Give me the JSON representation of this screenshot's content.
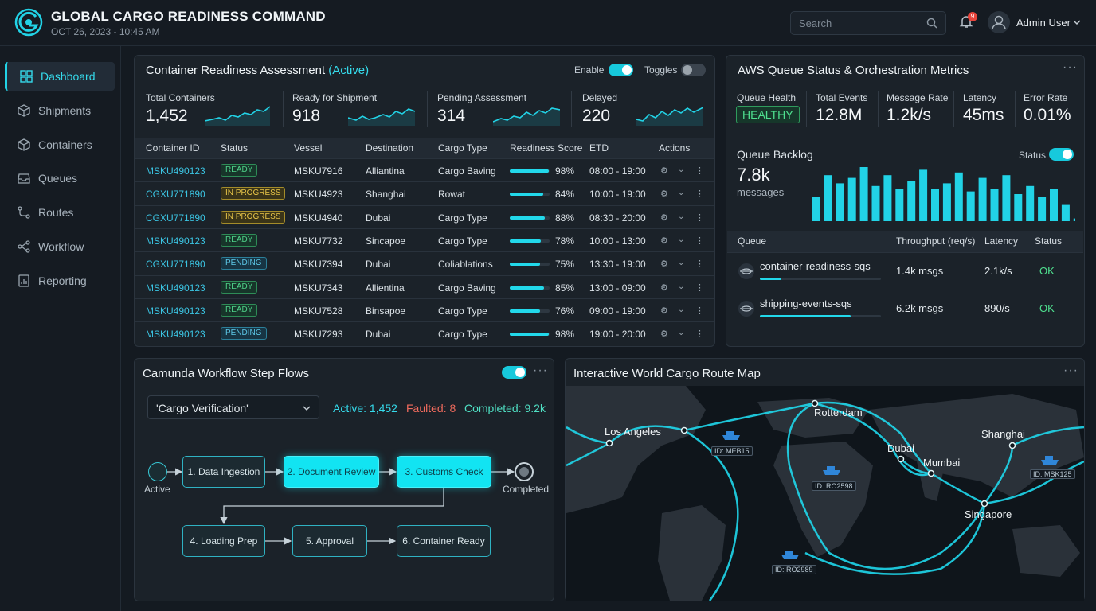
{
  "header": {
    "title": "GLOBAL CARGO READINESS COMMAND",
    "datetime": "OCT 26, 2023 - 10:45 AM",
    "search_placeholder": "Search",
    "notification_count": "9",
    "user_name": "Admin User"
  },
  "sidebar": {
    "items": [
      {
        "label": "Dashboard",
        "icon": "dashboard-icon",
        "active": true
      },
      {
        "label": "Shipments",
        "icon": "box-icon"
      },
      {
        "label": "Containers",
        "icon": "container-icon"
      },
      {
        "label": "Queues",
        "icon": "inbox-icon"
      },
      {
        "label": "Routes",
        "icon": "route-icon"
      },
      {
        "label": "Workflow",
        "icon": "workflow-icon"
      },
      {
        "label": "Reporting",
        "icon": "report-icon"
      }
    ]
  },
  "readiness": {
    "title": "Container Readiness Assessment",
    "title_suffix": "(Active)",
    "enable_label": "Enable",
    "toggles_label": "Toggles",
    "stats": [
      {
        "label": "Total Containers",
        "value": "1,452"
      },
      {
        "label": "Ready for Shipment",
        "value": "918"
      },
      {
        "label": "Pending Assessment",
        "value": "314"
      },
      {
        "label": "Delayed",
        "value": "220"
      }
    ],
    "columns": [
      "Container ID",
      "Status",
      "Vessel",
      "Destination",
      "Cargo Type",
      "Readiness Score",
      "ETD",
      "Actions"
    ],
    "rows": [
      {
        "id": "MSKU490123",
        "status": "READY",
        "vessel": "MSKU7916",
        "dest": "Alliantina",
        "cargo": "Cargo Baving",
        "score": 98,
        "score_label": "98%",
        "etd": "08:00 - 19:00"
      },
      {
        "id": "CGXU771890",
        "status": "IN PROGRESS",
        "vessel": "MSKU4923",
        "dest": "Shanghai",
        "cargo": "Rowat",
        "score": 84,
        "score_label": "84%",
        "etd": "10:00 - 19:00"
      },
      {
        "id": "CGXU771890",
        "status": "IN PROGRESS",
        "vessel": "MSKU4940",
        "dest": "Dubai",
        "cargo": "Cargo Type",
        "score": 88,
        "score_label": "88%",
        "etd": "08:30 - 20:00"
      },
      {
        "id": "MSKU490123",
        "status": "READY",
        "vessel": "MSKU7732",
        "dest": "Sincapoe",
        "cargo": "Cargo Type",
        "score": 78,
        "score_label": "78%",
        "etd": "10:00 - 13:00"
      },
      {
        "id": "CGXU771890",
        "status": "PENDING",
        "vessel": "MSKU7394",
        "dest": "Dubai",
        "cargo": "Coliablations",
        "score": 75,
        "score_label": "75%",
        "etd": "13:30 - 19:00"
      },
      {
        "id": "MSKU490123",
        "status": "READY",
        "vessel": "MSKU7343",
        "dest": "Allientina",
        "cargo": "Cargo Baving",
        "score": 85,
        "score_label": "85%",
        "etd": "13:00 - 09:00"
      },
      {
        "id": "MSKU490123",
        "status": "READY",
        "vessel": "MSKU7528",
        "dest": "Binsapoe",
        "cargo": "Cargo Type",
        "score": 76,
        "score_label": "76%",
        "etd": "09:00 - 19:00"
      },
      {
        "id": "MSKU490123",
        "status": "PENDING",
        "vessel": "MSKU7293",
        "dest": "Dubai",
        "cargo": "Cargo Type",
        "score": 98,
        "score_label": "98%",
        "etd": "19:00 - 20:00"
      }
    ]
  },
  "aws": {
    "title": "AWS Queue Status & Orchestration Metrics",
    "metrics": [
      {
        "label": "Queue Health",
        "value": "HEALTHY"
      },
      {
        "label": "Total Events",
        "value": "12.8M"
      },
      {
        "label": "Message Rate",
        "value": "1.2k/s"
      },
      {
        "label": "Latency",
        "value": "45ms"
      },
      {
        "label": "Error Rate",
        "value": "0.01%"
      }
    ],
    "backlog_label": "Queue Backlog",
    "backlog_value": "7.8k",
    "backlog_unit": "messages",
    "status_label": "Status",
    "backlog_bars": [
      0.45,
      0.85,
      0.7,
      0.8,
      1.0,
      0.65,
      0.85,
      0.6,
      0.75,
      0.95,
      0.6,
      0.7,
      0.9,
      0.55,
      0.8,
      0.6,
      0.85,
      0.5,
      0.65,
      0.45,
      0.6,
      0.3,
      0.05
    ],
    "columns": [
      "Queue",
      "Throughput (req/s)",
      "Latency",
      "Status"
    ],
    "queues": [
      {
        "name": "container-readiness-sqs",
        "throughput": "1.4k msgs",
        "latency": "2.1k/s",
        "status": "OK",
        "fill": 0.18
      },
      {
        "name": "shipping-events-sqs",
        "throughput": "6.2k msgs",
        "latency": "890/s",
        "status": "OK",
        "fill": 0.75
      }
    ]
  },
  "workflow": {
    "title": "Camunda Workflow Step Flows",
    "selected": "'Cargo Verification'",
    "active": "Active: 1,452",
    "faulted": "Faulted: 8",
    "completed": "Completed: 9.2k",
    "start_label": "Active",
    "end_label": "Completed",
    "steps": [
      "1. Data Ingestion",
      "2. Document Review",
      "3. Customs Check",
      "4. Loading Prep",
      "5. Approval",
      "6. Container Ready"
    ]
  },
  "map": {
    "title": "Interactive World Cargo Route Map",
    "cities": [
      "Los Angeles",
      "Rotterdam",
      "Dubai",
      "Mumbai",
      "Shanghai",
      "Singapore"
    ],
    "ships": [
      "ID: MEB15",
      "ID: RO2598",
      "ID: MSK125",
      "ID: RO2989"
    ]
  },
  "colors": {
    "accent": "#22d3e6",
    "ok": "#4fe08f",
    "fault": "#f06b5d",
    "bg": "#141a21"
  }
}
